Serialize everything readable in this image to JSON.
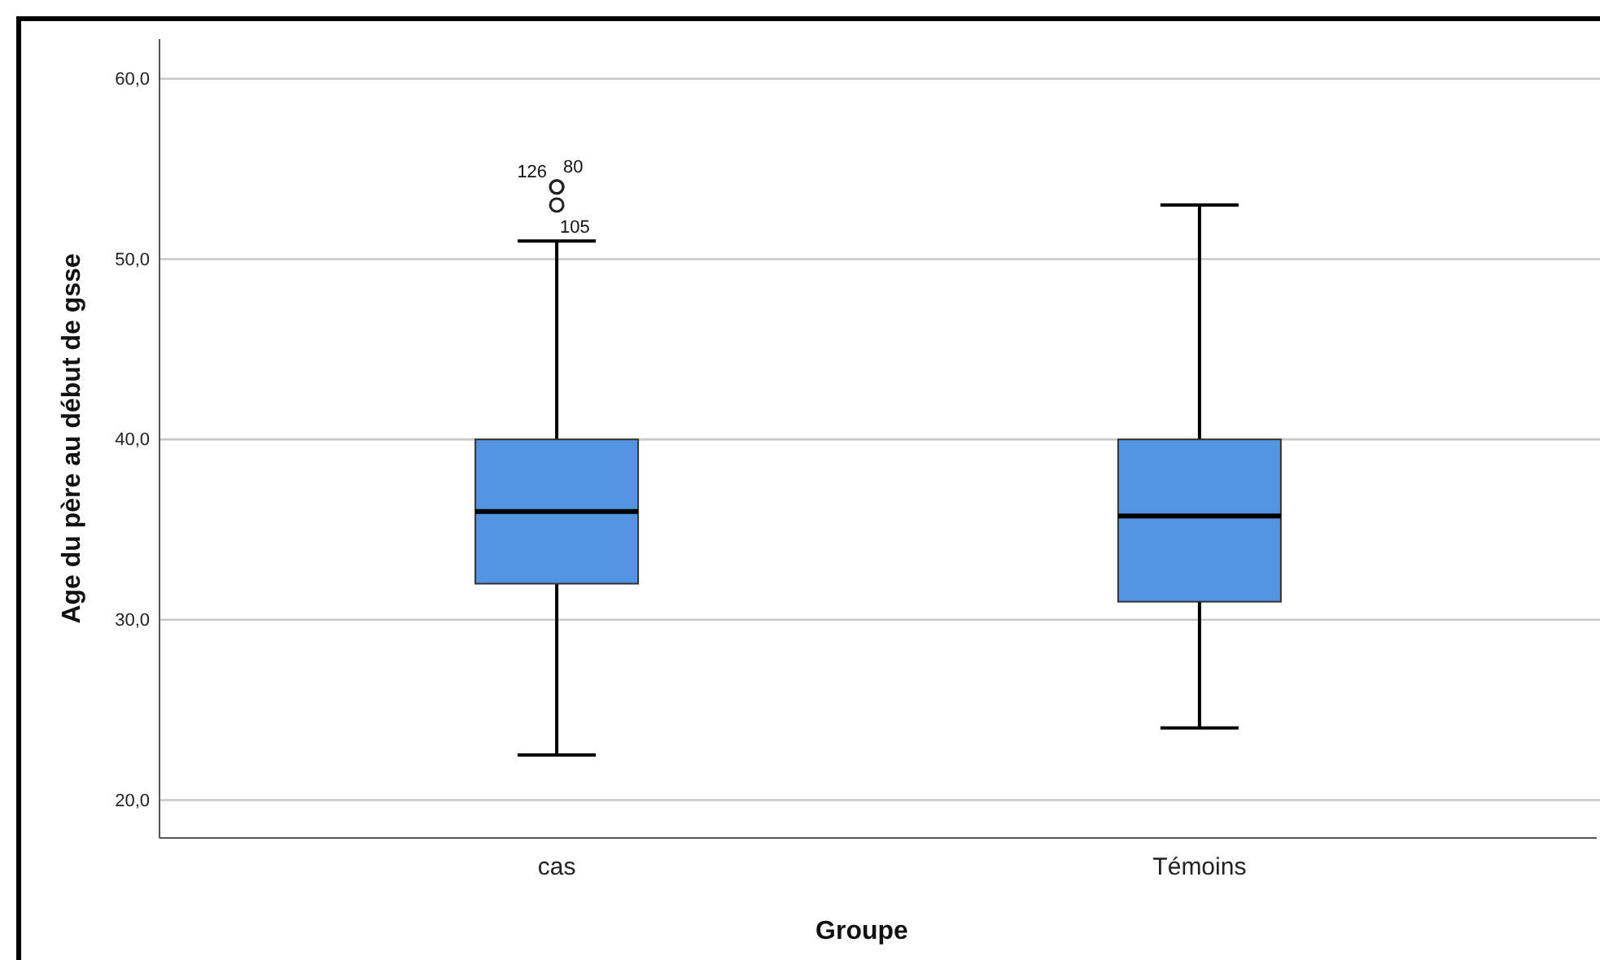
{
  "chart_data": {
    "type": "box",
    "xlabel": "Groupe",
    "ylabel": "Age du père au début de gsse",
    "categories": [
      "cas",
      "Témoins"
    ],
    "color": "#5294e2",
    "boxes": [
      {
        "low": 22.5,
        "q1": 32,
        "median": 36,
        "q3": 40,
        "high": 51,
        "outliers": [
          54,
          54,
          53
        ]
      },
      {
        "low": 24,
        "q1": 31,
        "median": 35.75,
        "q3": 40,
        "high": 53
      }
    ],
    "ylim": [
      17.9,
      62.2
    ],
    "yticks": [
      {
        "value": 20,
        "label": "20,0"
      },
      {
        "value": 30,
        "label": "30,0"
      },
      {
        "value": 40,
        "label": "40,0"
      },
      {
        "value": 50,
        "label": "50,0"
      },
      {
        "value": 60,
        "label": "60,0"
      }
    ],
    "grid": "y",
    "annotations": [
      "126",
      "80",
      "105"
    ]
  }
}
